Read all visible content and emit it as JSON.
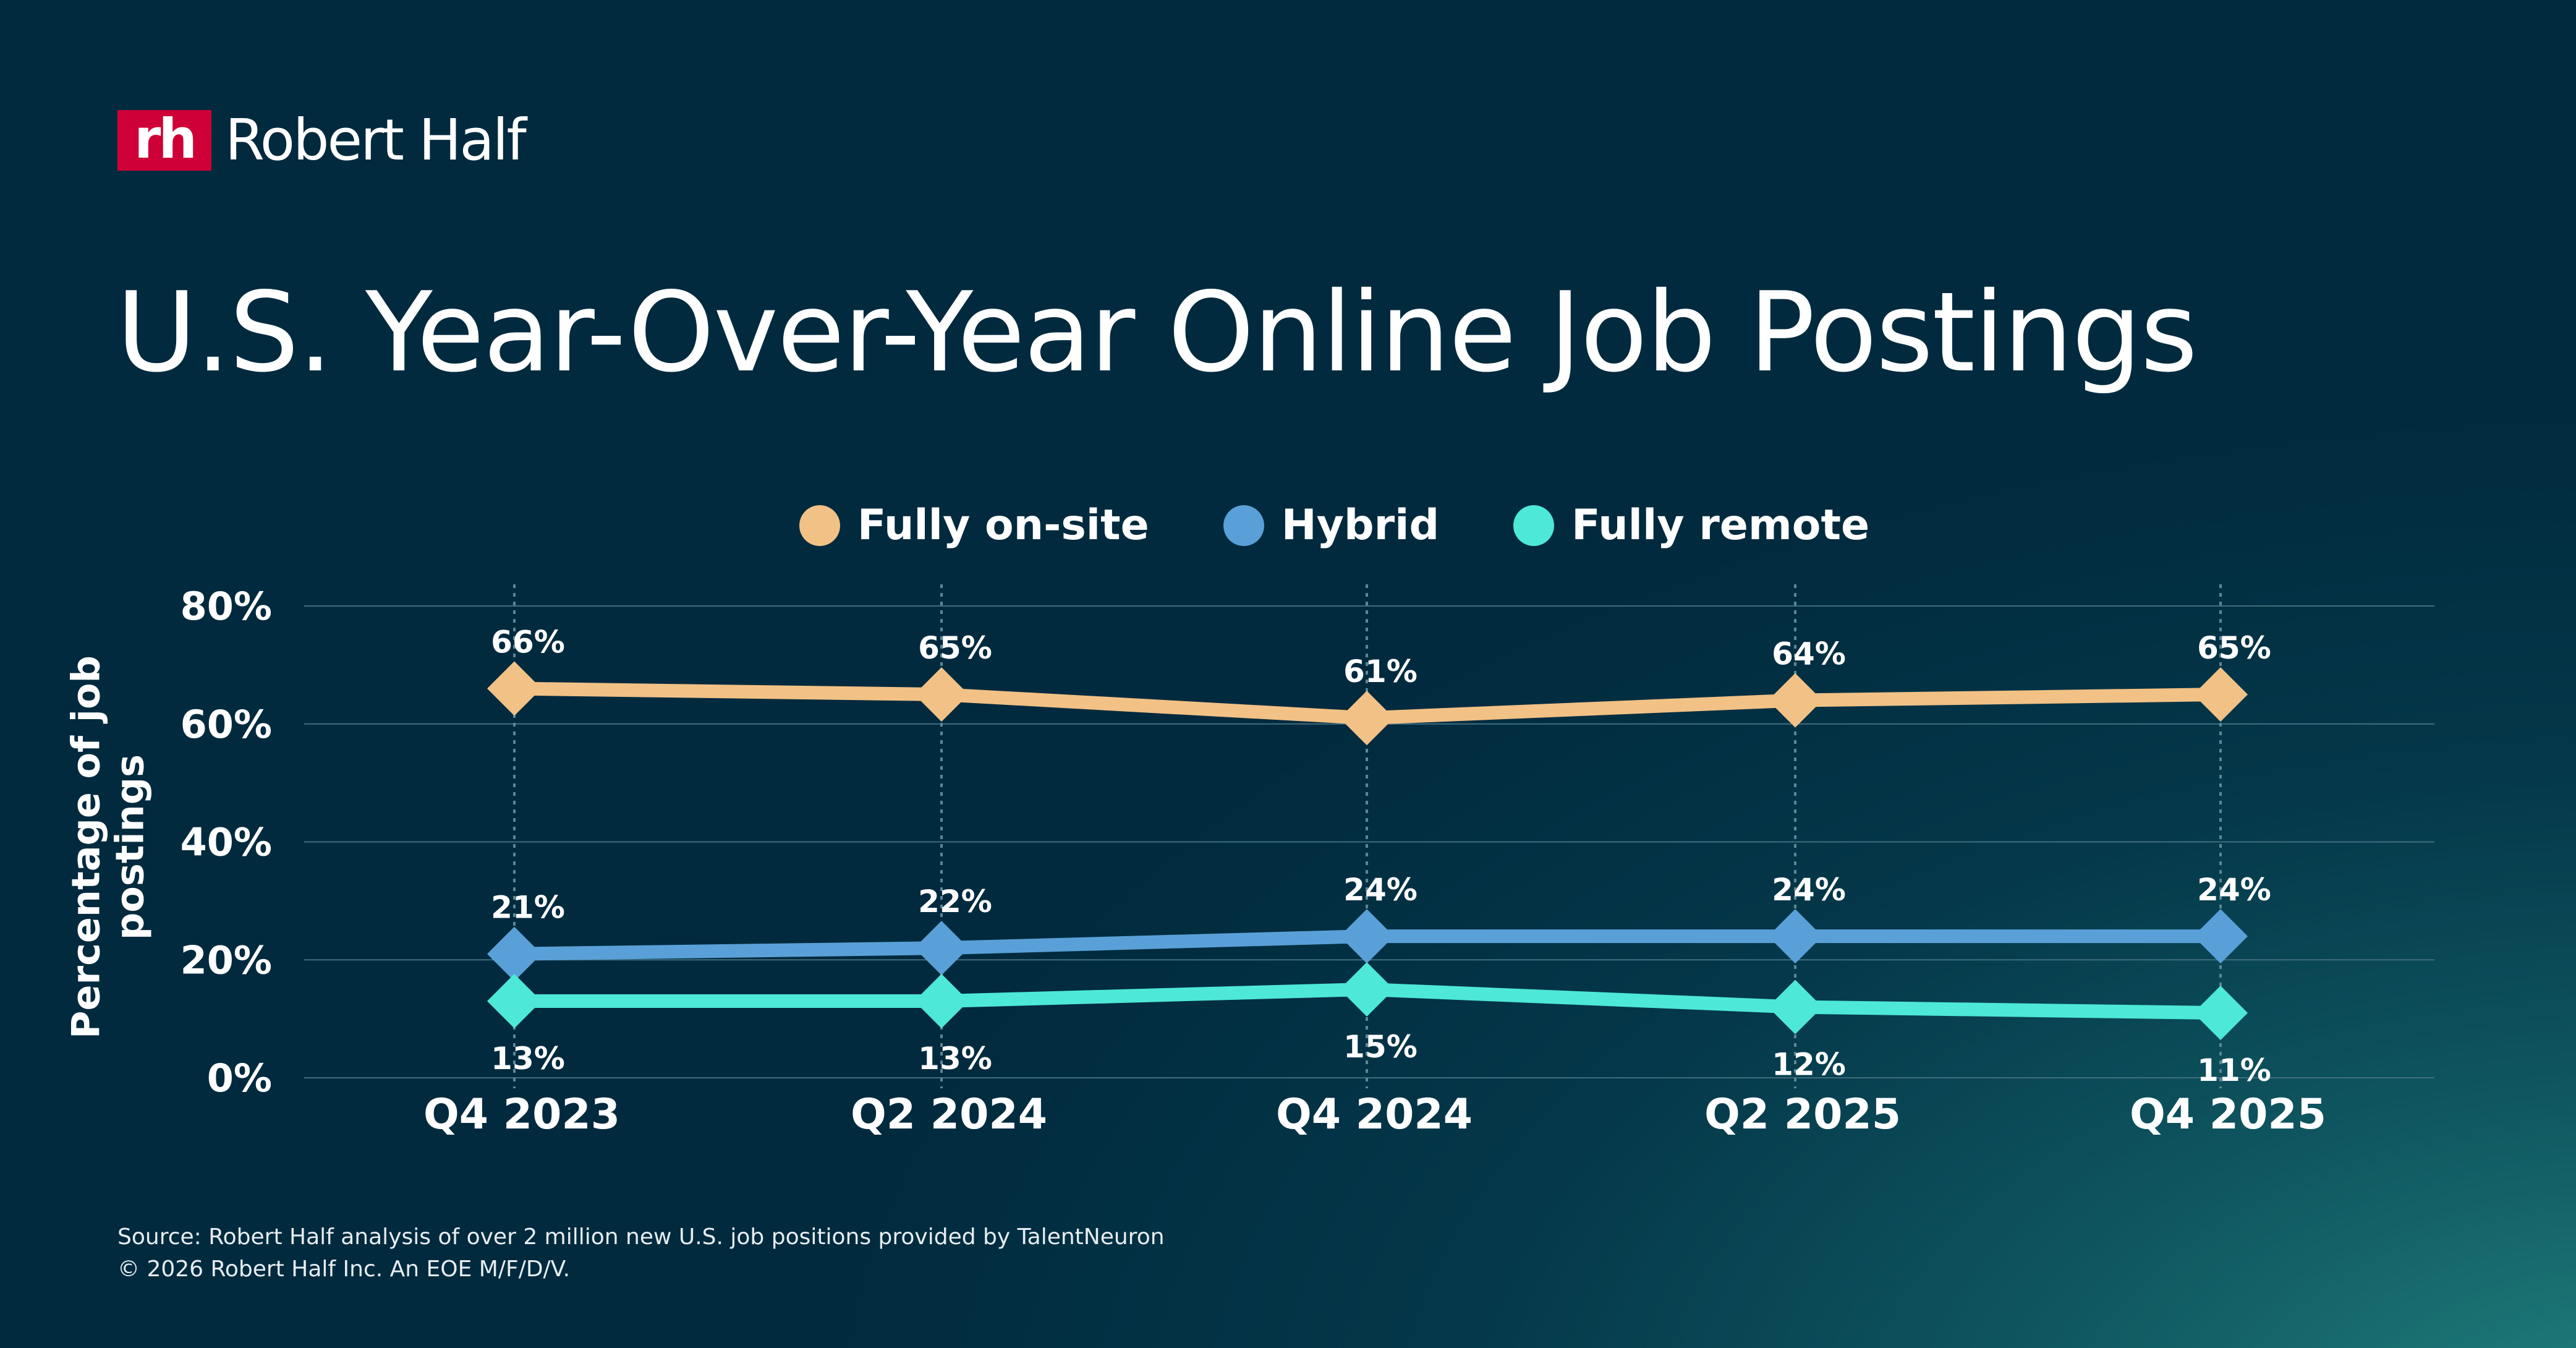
{
  "brand": {
    "logo_mark": "rh",
    "logo_text": "Robert Half",
    "logo_color": "#ce0037"
  },
  "title": "U.S. Year-Over-Year Online Job Postings",
  "chart_data": {
    "type": "line",
    "title": "U.S. Year-Over-Year Online Job Postings",
    "ylabel": "Percentage of job postings",
    "xlabel": "",
    "categories": [
      "Q4 2023",
      "Q2 2024",
      "Q4 2024",
      "Q2 2025",
      "Q4 2025"
    ],
    "ylim": [
      0,
      80
    ],
    "yticks": [
      0,
      20,
      40,
      60,
      80
    ],
    "ytick_labels": [
      "0%",
      "20%",
      "40%",
      "60%",
      "80%"
    ],
    "grid": true,
    "legend_placement": "top-center",
    "marker": "diamond",
    "series": [
      {
        "name": "Fully on-site",
        "color": "#f2c185",
        "values": [
          66,
          65,
          61,
          64,
          65
        ],
        "labels": [
          "66%",
          "65%",
          "61%",
          "64%",
          "65%"
        ],
        "label_position": "above"
      },
      {
        "name": "Hybrid",
        "color": "#5aa0d8",
        "values": [
          21,
          22,
          24,
          24,
          24
        ],
        "labels": [
          "21%",
          "22%",
          "24%",
          "24%",
          "24%"
        ],
        "label_position": "above"
      },
      {
        "name": "Fully remote",
        "color": "#4de8d8",
        "values": [
          13,
          13,
          15,
          12,
          11
        ],
        "labels": [
          "13%",
          "13%",
          "15%",
          "12%",
          "11%"
        ],
        "label_position": "below"
      }
    ]
  },
  "footer": {
    "source": "Source: Robert Half analysis of over 2 million new U.S. job positions provided by TalentNeuron",
    "copyright": "© 2026 Robert Half Inc. An EOE M/F/D/V."
  }
}
